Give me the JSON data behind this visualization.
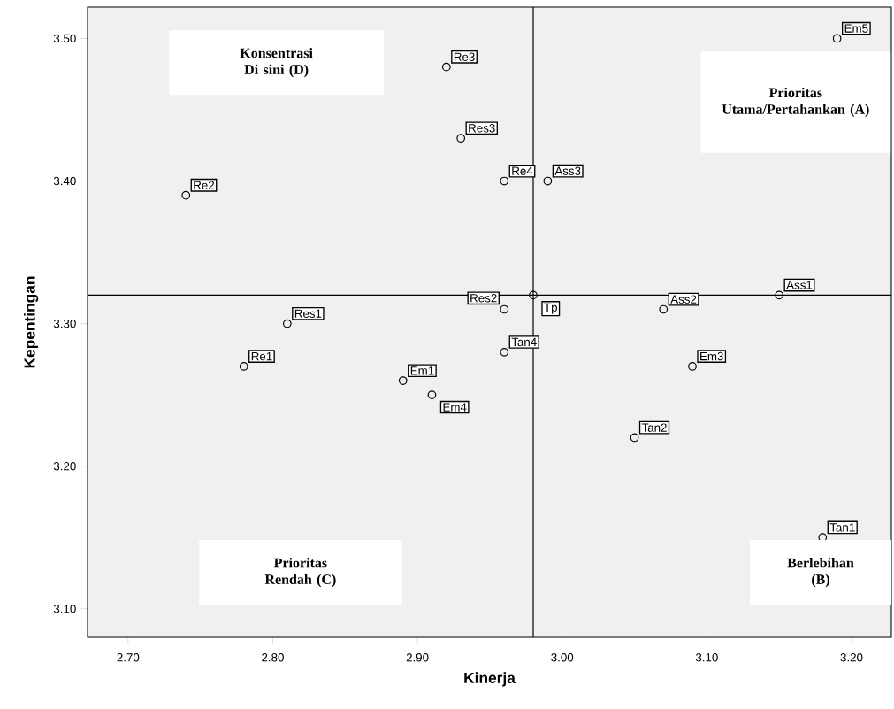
{
  "chart_data": {
    "type": "scatter",
    "xlabel": "Kinerja",
    "ylabel": "Kepentingan",
    "x": [
      3.19,
      2.92,
      2.93,
      2.74,
      2.96,
      2.99,
      2.98,
      2.96,
      3.07,
      3.15,
      2.81,
      2.78,
      2.96,
      2.89,
      2.91,
      3.09,
      3.05,
      3.18
    ],
    "series": [
      {
        "color": "#000000",
        "values": [
          3.5,
          3.48,
          3.43,
          3.39,
          3.4,
          3.4,
          3.32,
          3.31,
          3.31,
          3.32,
          3.3,
          3.27,
          3.28,
          3.26,
          3.25,
          3.27,
          3.22,
          3.15
        ]
      }
    ],
    "marker": "circle",
    "xlim": [
      2.672,
      3.2275
    ],
    "ylim": [
      3.08,
      3.522
    ],
    "xticks": [
      {
        "value": 2.7,
        "label": "2.70"
      },
      {
        "value": 2.8,
        "label": "2.80"
      },
      {
        "value": 2.9,
        "label": "2.90"
      },
      {
        "value": 3.0,
        "label": "3.00"
      },
      {
        "value": 3.1,
        "label": "3.10"
      },
      {
        "value": 3.2,
        "label": "3.20"
      }
    ],
    "yticks": [
      {
        "value": 3.1,
        "label": "3.10"
      },
      {
        "value": 3.2,
        "label": "3.20"
      },
      {
        "value": 3.3,
        "label": "3.30"
      },
      {
        "value": 3.4,
        "label": "3.40"
      },
      {
        "value": 3.5,
        "label": "3.50"
      }
    ],
    "ref_lines": [
      {
        "axis": "x",
        "value": 2.98,
        "color": "#000000"
      },
      {
        "axis": "y",
        "value": 3.32,
        "color": "#000000"
      }
    ],
    "annotations": [
      {
        "text": "Em5",
        "x": 3.19,
        "y": 3.5
      },
      {
        "text": "Re3",
        "x": 2.92,
        "y": 3.48
      },
      {
        "text": "Res3",
        "x": 2.93,
        "y": 3.43
      },
      {
        "text": "Re2",
        "x": 2.74,
        "y": 3.39
      },
      {
        "text": "Re4",
        "x": 2.96,
        "y": 3.4
      },
      {
        "text": "Ass3",
        "x": 2.99,
        "y": 3.4
      },
      {
        "text": "Tp",
        "x": 2.98,
        "y": 3.32
      },
      {
        "text": "Res2",
        "x": 2.96,
        "y": 3.31
      },
      {
        "text": "Ass2",
        "x": 3.07,
        "y": 3.31
      },
      {
        "text": "Ass1",
        "x": 3.15,
        "y": 3.32
      },
      {
        "text": "Res1",
        "x": 2.81,
        "y": 3.3
      },
      {
        "text": "Re1",
        "x": 2.78,
        "y": 3.27
      },
      {
        "text": "Tan4",
        "x": 2.96,
        "y": 3.28
      },
      {
        "text": "Em1",
        "x": 2.89,
        "y": 3.26
      },
      {
        "text": "Em4",
        "x": 2.91,
        "y": 3.25
      },
      {
        "text": "Em3",
        "x": 3.09,
        "y": 3.27
      },
      {
        "text": "Tan2",
        "x": 3.05,
        "y": 3.22
      },
      {
        "text": "Tan1",
        "x": 3.18,
        "y": 3.15
      },
      "Konsentrasi Di sini (D)",
      "Prioritas Utama/Pertahankan (A)",
      "Prioritas Rendah (C)",
      "Berlebihan (B)"
    ]
  }
}
